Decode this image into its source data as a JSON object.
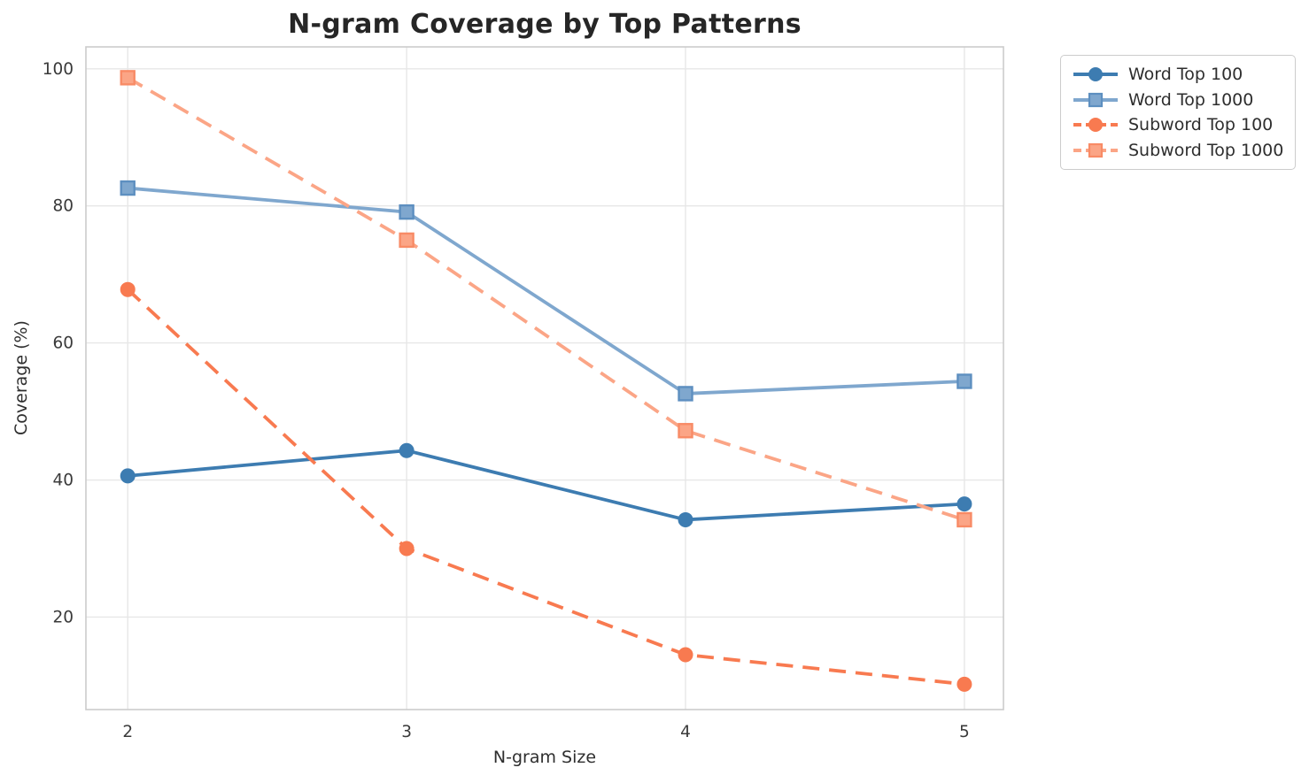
{
  "figure": {
    "title": "N-gram Coverage by Top Patterns",
    "xlabel": "N-gram Size",
    "ylabel": "Coverage (%)"
  },
  "colors": {
    "background": "#ffffff",
    "grid": "#e7e7e7",
    "spine": "#cccccc",
    "title_text": "#262626",
    "tick_text": "#3a3a3a",
    "legend_text": "#2e2e2e"
  },
  "chart_data": {
    "type": "line",
    "title": "N-gram Coverage by Top Patterns",
    "xlabel": "N-gram Size",
    "ylabel": "Coverage (%)",
    "x": [
      2,
      3,
      4,
      5
    ],
    "xticks": [
      2,
      3,
      4,
      5
    ],
    "yticks": [
      20,
      40,
      60,
      80,
      100
    ],
    "xlim": [
      1.85,
      5.14
    ],
    "ylim": [
      6.5,
      103.2
    ],
    "grid": true,
    "legend_position": "upper-right-outside",
    "series": [
      {
        "name": "Word Top 100",
        "values": [
          40.6,
          44.3,
          34.2,
          36.5
        ],
        "color": "#3d7cb1",
        "line_style": "solid",
        "marker": "circle",
        "marker_edge": "#3d7cb1"
      },
      {
        "name": "Word Top 1000",
        "values": [
          82.6,
          79.1,
          52.6,
          54.4
        ],
        "color": "#7fa7ce",
        "line_style": "solid",
        "marker": "square",
        "marker_edge": "#5d8fc0"
      },
      {
        "name": "Subword Top 100",
        "values": [
          67.8,
          30.0,
          14.5,
          10.2
        ],
        "color": "#f87a50",
        "line_style": "dashed",
        "marker": "circle",
        "marker_edge": "#f87a50"
      },
      {
        "name": "Subword Top 1000",
        "values": [
          98.7,
          75.0,
          47.2,
          34.2
        ],
        "color": "#fba586",
        "line_style": "dashed",
        "marker": "square",
        "marker_edge": "#f88b66"
      }
    ]
  }
}
